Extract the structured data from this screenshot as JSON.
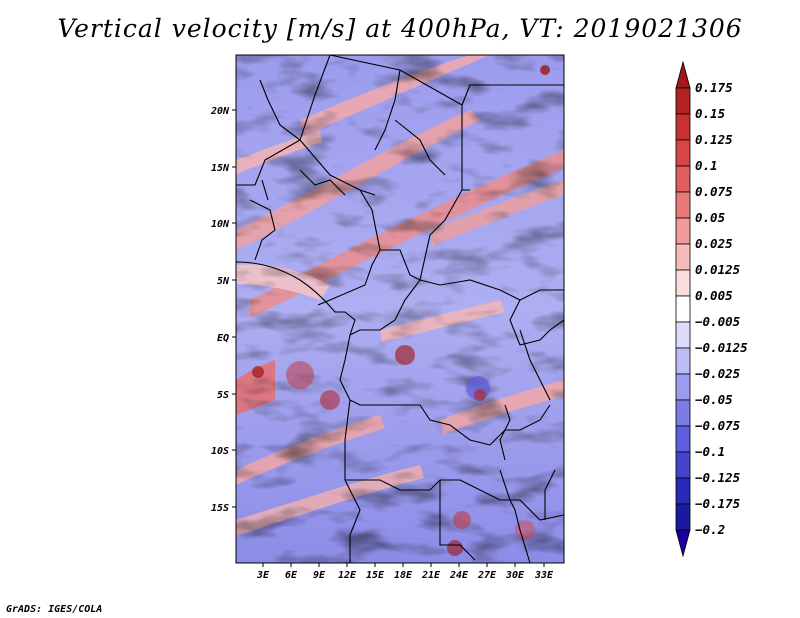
{
  "title": "Vertical velocity [m/s] at 400hPa, VT: 2019021306",
  "credit": "GrADS: IGES/COLA",
  "chart_data": {
    "type": "heatmap",
    "title": "Vertical velocity [m/s] at 400hPa, VT: 2019021306",
    "variable": "Vertical velocity",
    "units": "m/s",
    "level": "400hPa",
    "valid_time": "2019021306",
    "x_ticks": [
      "3E",
      "6E",
      "9E",
      "12E",
      "15E",
      "18E",
      "21E",
      "24E",
      "27E",
      "30E",
      "33E"
    ],
    "y_ticks": [
      "20N",
      "15N",
      "10N",
      "5N",
      "EQ",
      "5S",
      "10S",
      "15S"
    ],
    "lon_range": [
      0.5,
      35.5
    ],
    "lat_range": [
      -20,
      25
    ],
    "colorbar": {
      "labels": [
        "0.175",
        "0.15",
        "0.125",
        "0.1",
        "0.075",
        "0.05",
        "0.025",
        "0.0125",
        "0.005",
        "−0.005",
        "−0.0125",
        "−0.025",
        "−0.05",
        "−0.075",
        "−0.1",
        "−0.125",
        "−0.175",
        "−0.2"
      ],
      "colors": [
        "#a01818",
        "#b42222",
        "#c63232",
        "#d64646",
        "#e05e5e",
        "#e87a7a",
        "#f09a9a",
        "#f6bcbc",
        "#fbdddd",
        "#ffffff",
        "#dcdcfa",
        "#bcbcf4",
        "#9c9cee",
        "#7c7ce6",
        "#5e5ede",
        "#4444cc",
        "#2a2ab8",
        "#1a1aa0",
        "#1a00a0"
      ]
    }
  }
}
